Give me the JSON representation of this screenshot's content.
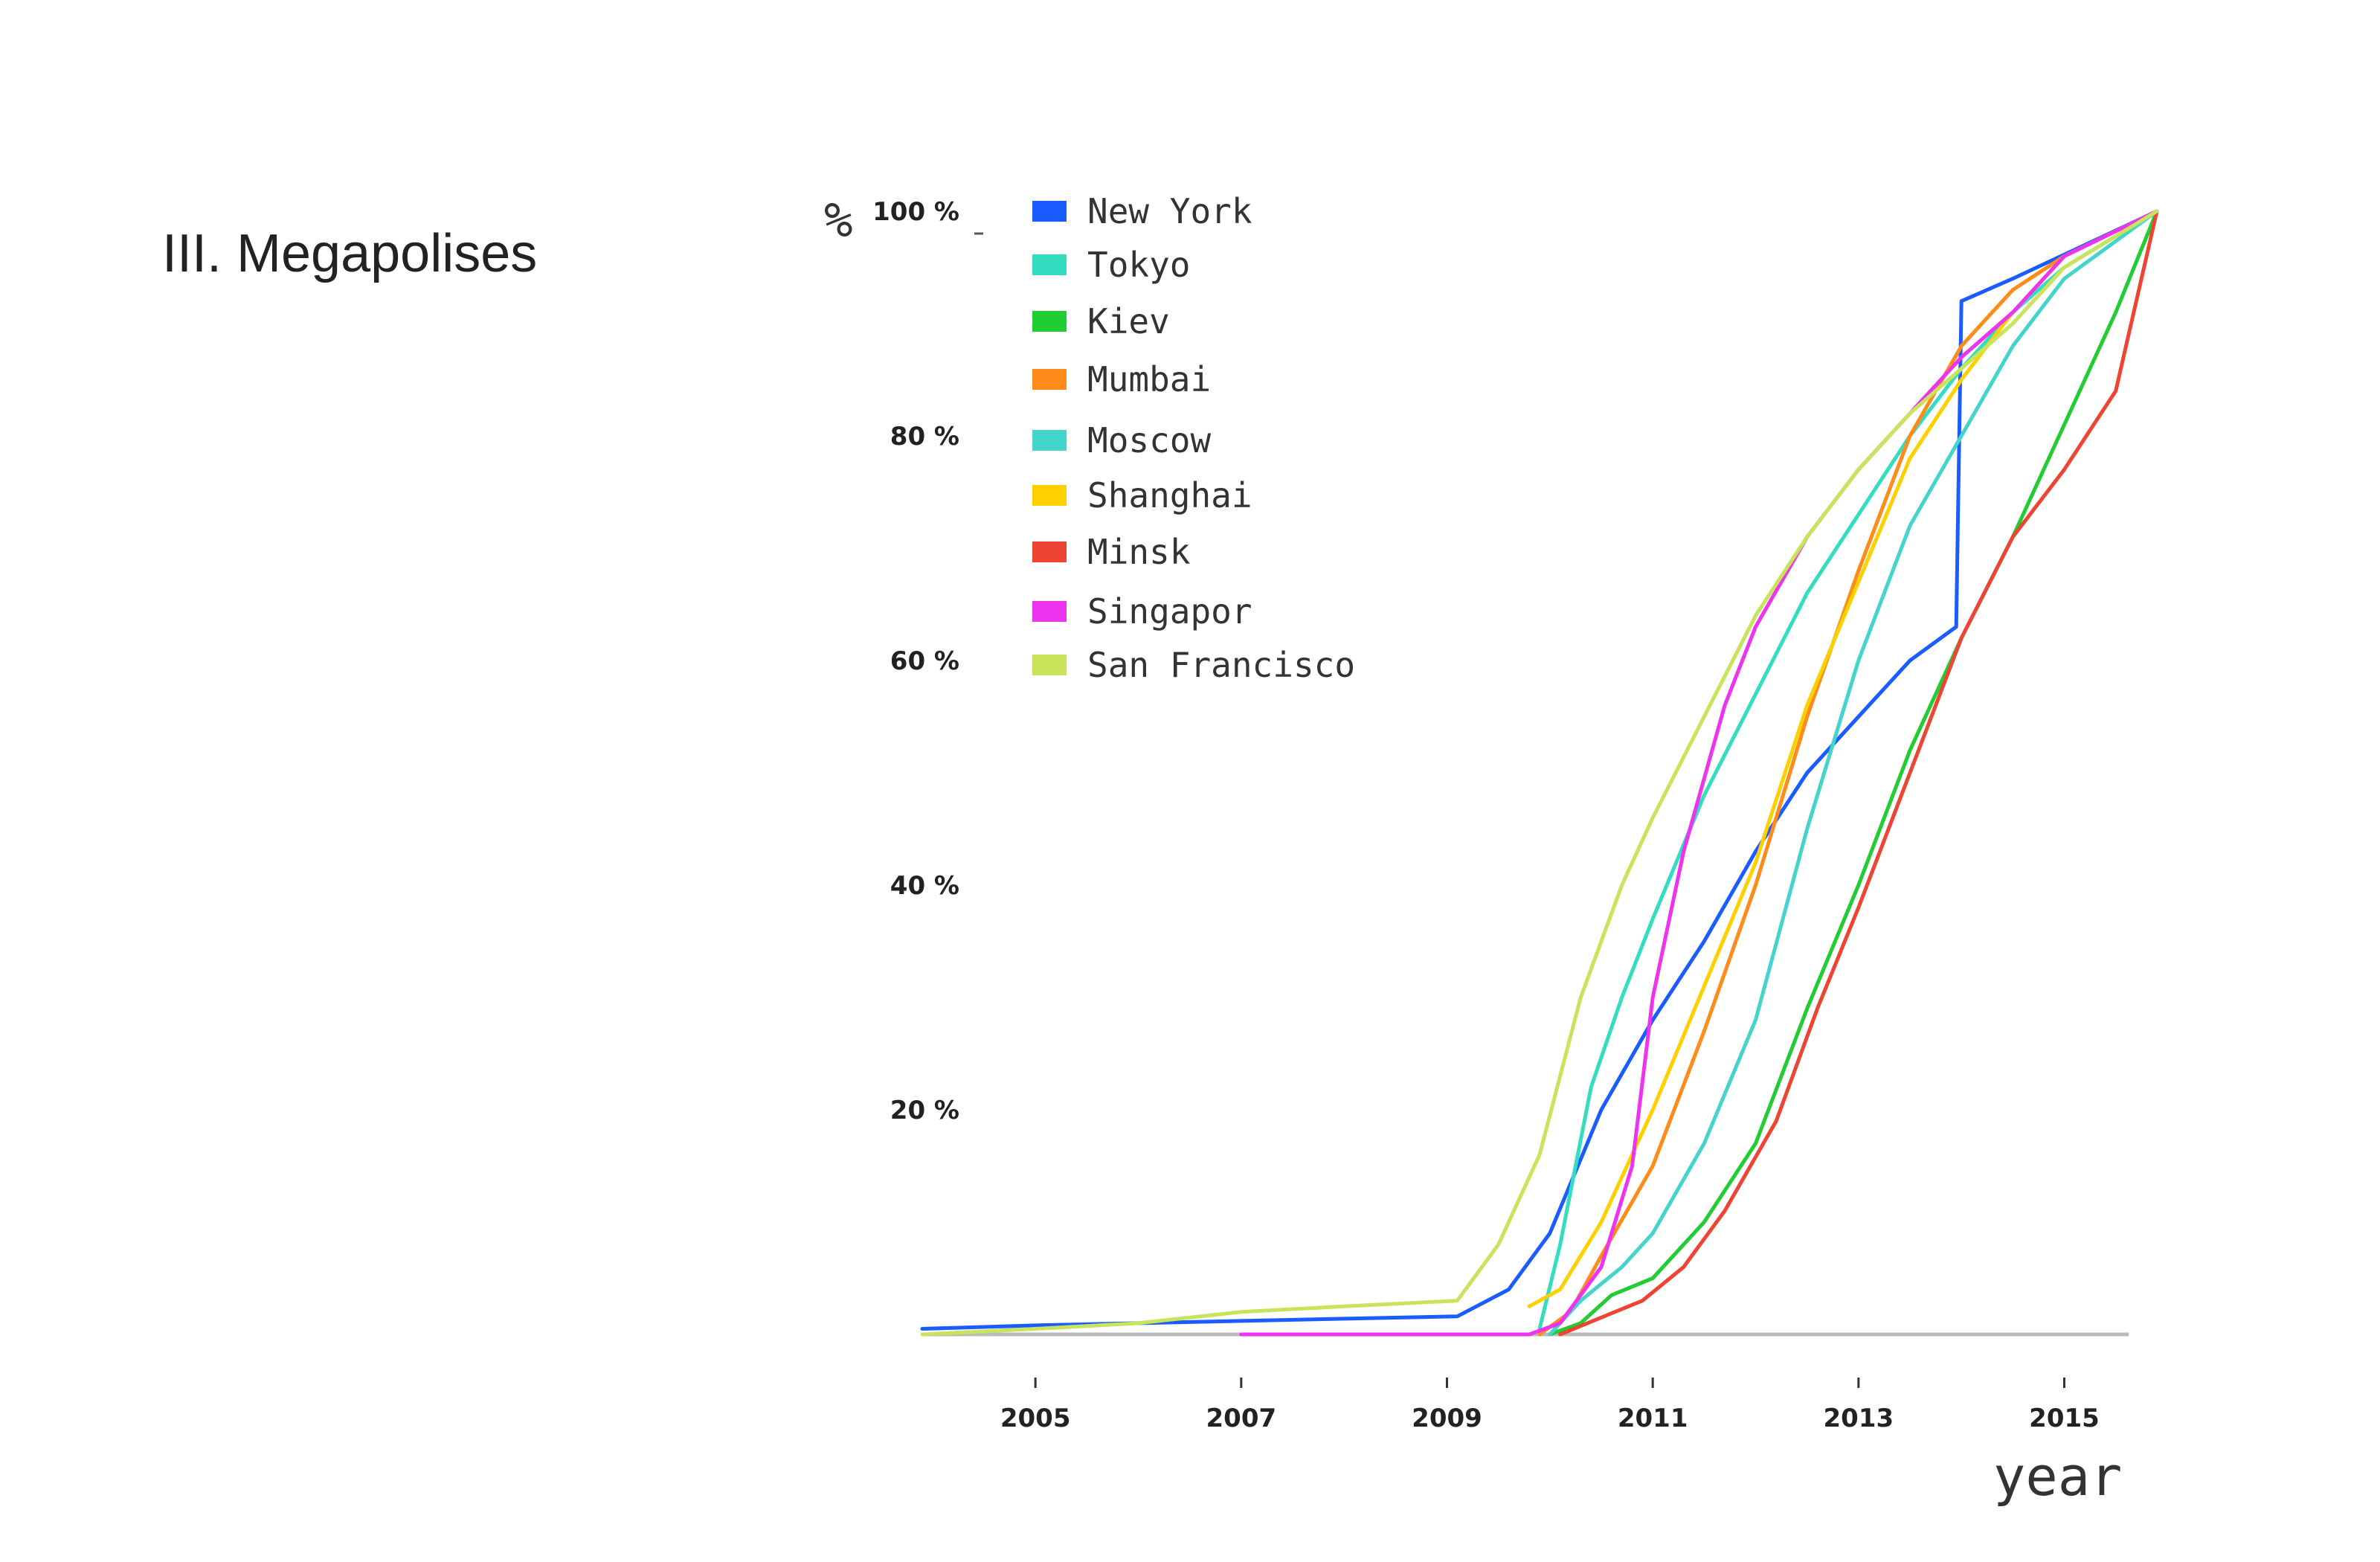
{
  "page": {
    "section_title": "III. Megapolises"
  },
  "chart_data": {
    "type": "line",
    "title": "",
    "xlabel": "year",
    "ylabel": "%",
    "xlim": [
      2003.9,
      2015.9
    ],
    "ylim": [
      0,
      100
    ],
    "x_ticks": [
      2005,
      2007,
      2009,
      2011,
      2013,
      2015
    ],
    "x_tick_labels": [
      "2005",
      "2007",
      "2009",
      "2011",
      "2013",
      "2015"
    ],
    "y_ticks": [
      20,
      40,
      60,
      80,
      100
    ],
    "y_tick_labels": [
      "20 %",
      "40 %",
      "60 %",
      "80 %",
      "100 %"
    ],
    "grid": false,
    "legend_position": "top-left",
    "series": [
      {
        "name": "New York",
        "color": "#1a5cff",
        "points": [
          [
            2003.9,
            0.5
          ],
          [
            2005,
            0.8
          ],
          [
            2006,
            1.0
          ],
          [
            2007,
            1.2
          ],
          [
            2008,
            1.4
          ],
          [
            2009.1,
            1.6
          ],
          [
            2009.6,
            4
          ],
          [
            2010,
            9
          ],
          [
            2010.5,
            20
          ],
          [
            2011,
            28
          ],
          [
            2011.5,
            35
          ],
          [
            2012,
            43
          ],
          [
            2012.5,
            50
          ],
          [
            2013,
            55
          ],
          [
            2013.5,
            60
          ],
          [
            2013.95,
            63
          ],
          [
            2014,
            92
          ],
          [
            2014.5,
            94
          ],
          [
            2015.9,
            100
          ]
        ]
      },
      {
        "name": "Tokyo",
        "color": "#34dcc0",
        "points": [
          [
            2009.9,
            0.5
          ],
          [
            2010.1,
            8
          ],
          [
            2010.4,
            22
          ],
          [
            2010.7,
            30
          ],
          [
            2011,
            37
          ],
          [
            2011.5,
            48
          ],
          [
            2012,
            57
          ],
          [
            2012.5,
            66
          ],
          [
            2013,
            73
          ],
          [
            2013.5,
            80
          ],
          [
            2014,
            86
          ],
          [
            2014.5,
            91
          ],
          [
            2015,
            95
          ],
          [
            2015.9,
            100
          ]
        ]
      },
      {
        "name": "Kiev",
        "color": "#22cc33",
        "points": [
          [
            2010,
            0
          ],
          [
            2010.3,
            1
          ],
          [
            2010.6,
            3.5
          ],
          [
            2011,
            5
          ],
          [
            2011.5,
            10
          ],
          [
            2012,
            17
          ],
          [
            2012.5,
            29
          ],
          [
            2013,
            40
          ],
          [
            2013.5,
            52
          ],
          [
            2014,
            62
          ],
          [
            2014.5,
            71
          ],
          [
            2015,
            81
          ],
          [
            2015.5,
            91
          ],
          [
            2015.9,
            100
          ]
        ]
      },
      {
        "name": "Mumbai",
        "color": "#ff8c1a",
        "points": [
          [
            2009.9,
            0
          ],
          [
            2010.2,
            2
          ],
          [
            2010.5,
            7
          ],
          [
            2011,
            15
          ],
          [
            2011.5,
            27
          ],
          [
            2012,
            40
          ],
          [
            2012.5,
            55
          ],
          [
            2013,
            68
          ],
          [
            2013.5,
            80
          ],
          [
            2014,
            88
          ],
          [
            2014.5,
            93
          ],
          [
            2015,
            96
          ],
          [
            2015.9,
            100
          ]
        ]
      },
      {
        "name": "Moscow",
        "color": "#44d4cc",
        "points": [
          [
            2010,
            0
          ],
          [
            2010.3,
            3
          ],
          [
            2010.7,
            6
          ],
          [
            2011,
            9
          ],
          [
            2011.5,
            17
          ],
          [
            2012,
            28
          ],
          [
            2012.5,
            45
          ],
          [
            2013,
            60
          ],
          [
            2013.5,
            72
          ],
          [
            2014,
            80
          ],
          [
            2014.5,
            88
          ],
          [
            2015,
            94
          ],
          [
            2015.9,
            100
          ]
        ]
      },
      {
        "name": "Shanghai",
        "color": "#ffd000",
        "points": [
          [
            2009.8,
            2.5
          ],
          [
            2010.1,
            4
          ],
          [
            2010.5,
            10
          ],
          [
            2011,
            20
          ],
          [
            2011.5,
            31
          ],
          [
            2012,
            42
          ],
          [
            2012.5,
            56
          ],
          [
            2013,
            67
          ],
          [
            2013.5,
            78
          ],
          [
            2014,
            85
          ],
          [
            2014.5,
            91
          ],
          [
            2015,
            96
          ],
          [
            2015.9,
            100
          ]
        ]
      },
      {
        "name": "Minsk",
        "color": "#ee4433",
        "points": [
          [
            2010.1,
            0
          ],
          [
            2010.5,
            1.5
          ],
          [
            2010.9,
            3
          ],
          [
            2011.3,
            6
          ],
          [
            2011.7,
            11
          ],
          [
            2012.2,
            19
          ],
          [
            2012.6,
            29
          ],
          [
            2013,
            38
          ],
          [
            2013.5,
            50
          ],
          [
            2014,
            62
          ],
          [
            2014.5,
            71
          ],
          [
            2015,
            77
          ],
          [
            2015.5,
            84
          ],
          [
            2015.9,
            100
          ]
        ]
      },
      {
        "name": "Singapor",
        "color": "#ee33ee",
        "points": [
          [
            2007,
            0
          ],
          [
            2008,
            0
          ],
          [
            2009.8,
            0
          ],
          [
            2010.1,
            1
          ],
          [
            2010.5,
            6
          ],
          [
            2010.8,
            15
          ],
          [
            2011,
            30
          ],
          [
            2011.3,
            43
          ],
          [
            2011.7,
            56
          ],
          [
            2012,
            63
          ],
          [
            2012.5,
            71
          ],
          [
            2013,
            77
          ],
          [
            2013.5,
            82
          ],
          [
            2014,
            87
          ],
          [
            2014.5,
            91
          ],
          [
            2015,
            96
          ],
          [
            2015.9,
            100
          ]
        ]
      },
      {
        "name": "San Francisco",
        "color": "#c8e45a",
        "points": [
          [
            2003.9,
            0
          ],
          [
            2005,
            0.5
          ],
          [
            2006,
            1
          ],
          [
            2007,
            2
          ],
          [
            2008,
            2.5
          ],
          [
            2009.1,
            3
          ],
          [
            2009.5,
            8
          ],
          [
            2009.9,
            16
          ],
          [
            2010.3,
            30
          ],
          [
            2010.7,
            40
          ],
          [
            2011,
            46
          ],
          [
            2011.5,
            55
          ],
          [
            2012,
            64
          ],
          [
            2012.5,
            71
          ],
          [
            2013,
            77
          ],
          [
            2013.5,
            82
          ],
          [
            2014,
            86
          ],
          [
            2014.5,
            90
          ],
          [
            2015,
            95
          ],
          [
            2015.9,
            100
          ]
        ]
      }
    ]
  }
}
